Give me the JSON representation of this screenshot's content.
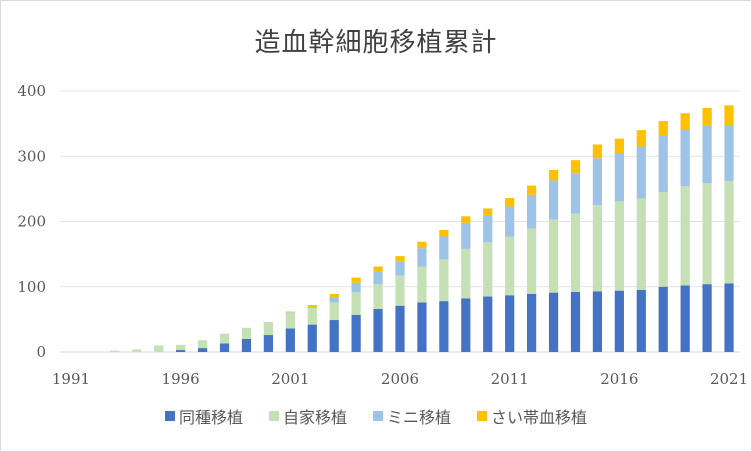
{
  "chart_data": {
    "type": "bar",
    "stacked": true,
    "title": "造血幹細胞移植累計",
    "xlabel": "",
    "ylabel": "",
    "ylim": [
      0,
      400
    ],
    "yticks": [
      0,
      100,
      200,
      300,
      400
    ],
    "xticks": [
      "1991",
      "1996",
      "2001",
      "2006",
      "2011",
      "2016",
      "2021"
    ],
    "grid": true,
    "legend_position": "bottom",
    "categories": [
      "1991",
      "1992",
      "1993",
      "1994",
      "1995",
      "1996",
      "1997",
      "1998",
      "1999",
      "2000",
      "2001",
      "2002",
      "2003",
      "2004",
      "2005",
      "2006",
      "2007",
      "2008",
      "2009",
      "2010",
      "2011",
      "2012",
      "2013",
      "2014",
      "2015",
      "2016",
      "2017",
      "2018",
      "2019",
      "2020",
      "2021"
    ],
    "series": [
      {
        "name": "同種移植",
        "color": "#4472c4",
        "values": [
          0,
          0,
          0,
          0,
          0,
          3,
          6,
          13,
          20,
          26,
          36,
          42,
          49,
          57,
          66,
          71,
          76,
          78,
          82,
          85,
          87,
          89,
          91,
          92,
          93,
          94,
          95,
          100,
          102,
          104,
          105
        ]
      },
      {
        "name": "自家移植",
        "color": "#c5e0b4",
        "values": [
          0,
          0,
          2,
          4,
          10,
          8,
          12,
          15,
          17,
          20,
          24,
          25,
          27,
          35,
          38,
          46,
          55,
          64,
          76,
          83,
          90,
          100,
          112,
          120,
          132,
          137,
          140,
          145,
          152,
          155,
          157
        ]
      },
      {
        "name": "ミニ移植",
        "color": "#9dc3e6",
        "values": [
          0,
          0,
          0,
          0,
          0,
          0,
          0,
          0,
          0,
          0,
          1,
          2,
          8,
          14,
          20,
          22,
          28,
          35,
          40,
          42,
          46,
          52,
          60,
          62,
          72,
          74,
          80,
          86,
          87,
          88,
          86
        ]
      },
      {
        "name": "さい帯血移植",
        "color": "#ffc000",
        "values": [
          0,
          0,
          0,
          0,
          0,
          0,
          0,
          0,
          0,
          0,
          1,
          3,
          5,
          8,
          7,
          8,
          10,
          10,
          10,
          10,
          13,
          14,
          16,
          20,
          21,
          22,
          25,
          23,
          25,
          27,
          30
        ]
      }
    ]
  }
}
